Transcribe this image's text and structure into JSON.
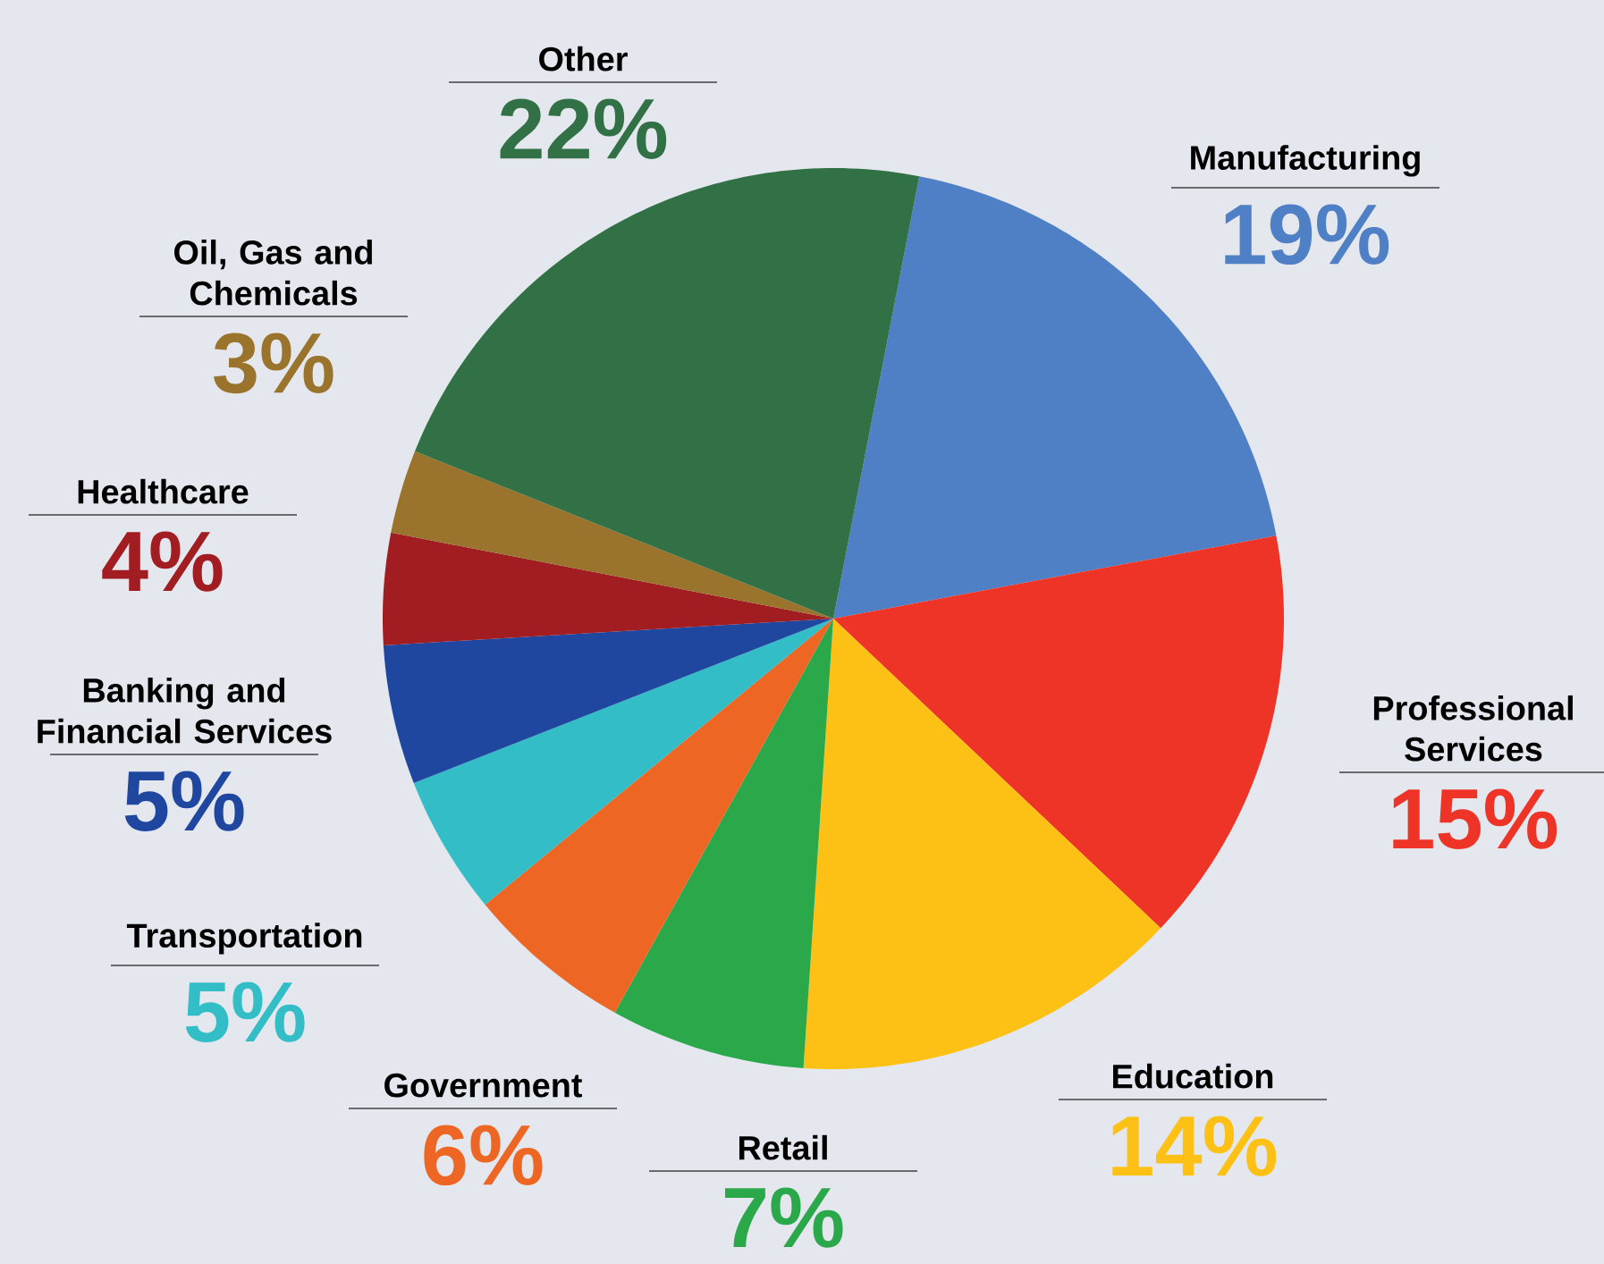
{
  "chart_data": {
    "type": "pie",
    "categories": [
      "Manufacturing",
      "Professional Services",
      "Education",
      "Retail",
      "Government",
      "Transportation",
      "Banking and Financial Services",
      "Healthcare",
      "Oil, Gas and Chemicals",
      "Other"
    ],
    "values": [
      19,
      15,
      14,
      7,
      6,
      5,
      5,
      4,
      3,
      22
    ],
    "colors": [
      "#4f7fc4",
      "#ee3427",
      "#fdc116",
      "#2aa84a",
      "#ee6623",
      "#33bdc6",
      "#1f47a0",
      "#a11d21",
      "#9a742d",
      "#327046"
    ],
    "value_labels": [
      "19%",
      "15%",
      "14%",
      "7%",
      "6%",
      "5%",
      "5%",
      "4%",
      "3%",
      "22%"
    ]
  }
}
